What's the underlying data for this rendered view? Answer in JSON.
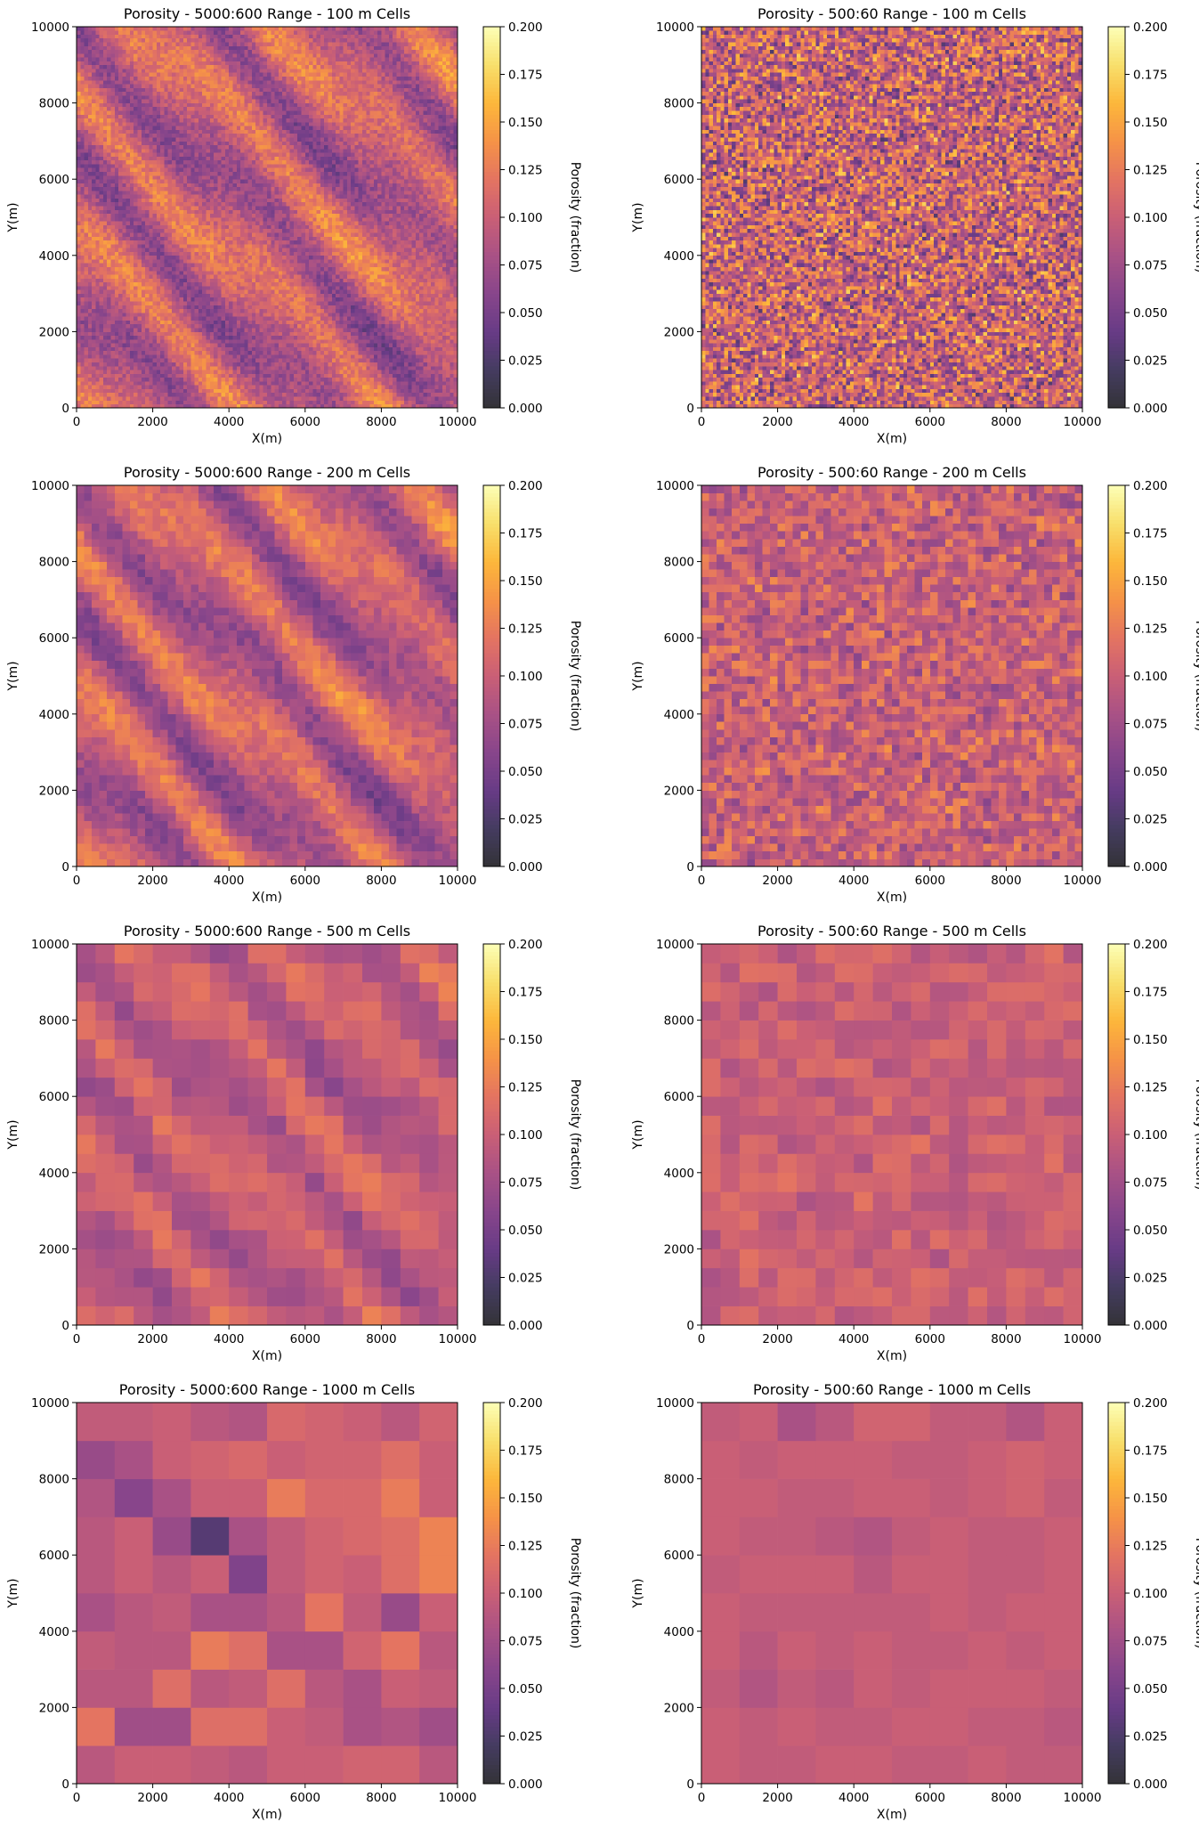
{
  "figure": {
    "colormap": "inferno",
    "colorbar_label": "Porosity (fraction)",
    "colorbar_ticks": [
      "0.000",
      "0.025",
      "0.050",
      "0.075",
      "0.100",
      "0.125",
      "0.150",
      "0.175",
      "0.200"
    ]
  },
  "chart_data": [
    {
      "type": "heatmap",
      "title": "Porosity - 5000:600 Range - 100 m Cells",
      "xlabel": "X(m)",
      "ylabel": "Y(m)",
      "xlim": [
        0,
        10000
      ],
      "ylim": [
        0,
        10000
      ],
      "xticks": [
        "0",
        "2000",
        "4000",
        "6000",
        "8000",
        "10000"
      ],
      "yticks": [
        "0",
        "2000",
        "4000",
        "6000",
        "8000",
        "10000"
      ],
      "color_range": [
        0.0,
        0.2
      ],
      "cell_size_m": 100,
      "grid": [
        100,
        100
      ],
      "pattern": "anisotropic bands oriented about 30 degrees, porosity approx 0.0-0.2"
    },
    {
      "type": "heatmap",
      "title": "Porosity - 500:60 Range - 100 m Cells",
      "xlabel": "X(m)",
      "ylabel": "Y(m)",
      "xlim": [
        0,
        10000
      ],
      "ylim": [
        0,
        10000
      ],
      "xticks": [
        "0",
        "2000",
        "4000",
        "6000",
        "8000",
        "10000"
      ],
      "yticks": [
        "0",
        "2000",
        "4000",
        "6000",
        "8000",
        "10000"
      ],
      "color_range": [
        0.0,
        0.2
      ],
      "cell_size_m": 100,
      "grid": [
        100,
        100
      ],
      "pattern": "short-range noise, porosity approx 0.03-0.18"
    },
    {
      "type": "heatmap",
      "title": "Porosity - 5000:600 Range - 200 m Cells",
      "xlabel": "X(m)",
      "ylabel": "Y(m)",
      "xlim": [
        0,
        10000
      ],
      "ylim": [
        0,
        10000
      ],
      "xticks": [
        "0",
        "2000",
        "4000",
        "6000",
        "8000",
        "10000"
      ],
      "yticks": [
        "0",
        "2000",
        "4000",
        "6000",
        "8000",
        "10000"
      ],
      "color_range": [
        0.0,
        0.2
      ],
      "cell_size_m": 200,
      "grid": [
        50,
        50
      ],
      "pattern": "anisotropic bands oriented about 30 degrees"
    },
    {
      "type": "heatmap",
      "title": "Porosity - 500:60 Range - 200 m Cells",
      "xlabel": "X(m)",
      "ylabel": "Y(m)",
      "xlim": [
        0,
        10000
      ],
      "ylim": [
        0,
        10000
      ],
      "xticks": [
        "0",
        "2000",
        "4000",
        "6000",
        "8000",
        "10000"
      ],
      "yticks": [
        "0",
        "2000",
        "4000",
        "6000",
        "8000",
        "10000"
      ],
      "color_range": [
        0.0,
        0.2
      ],
      "cell_size_m": 200,
      "grid": [
        50,
        50
      ],
      "pattern": "short-range noise, smoothed"
    },
    {
      "type": "heatmap",
      "title": "Porosity - 5000:600 Range - 500 m Cells",
      "xlabel": "X(m)",
      "ylabel": "Y(m)",
      "xlim": [
        0,
        10000
      ],
      "ylim": [
        0,
        10000
      ],
      "xticks": [
        "0",
        "2000",
        "4000",
        "6000",
        "8000",
        "10000"
      ],
      "yticks": [
        "0",
        "2000",
        "4000",
        "6000",
        "8000",
        "10000"
      ],
      "color_range": [
        0.0,
        0.2
      ],
      "cell_size_m": 500,
      "grid": [
        20,
        20
      ],
      "pattern": "coarsened anisotropic bands"
    },
    {
      "type": "heatmap",
      "title": "Porosity - 500:60 Range - 500 m Cells",
      "xlabel": "X(m)",
      "ylabel": "Y(m)",
      "xlim": [
        0,
        10000
      ],
      "ylim": [
        0,
        10000
      ],
      "xticks": [
        "0",
        "2000",
        "4000",
        "6000",
        "8000",
        "10000"
      ],
      "yticks": [
        "0",
        "2000",
        "4000",
        "6000",
        "8000",
        "10000"
      ],
      "color_range": [
        0.0,
        0.2
      ],
      "cell_size_m": 500,
      "grid": [
        20,
        20
      ],
      "pattern": "near-uniform around 0.09-0.11"
    },
    {
      "type": "heatmap",
      "title": "Porosity - 5000:600 Range - 1000 m Cells",
      "xlabel": "X(m)",
      "ylabel": "Y(m)",
      "xlim": [
        0,
        10000
      ],
      "ylim": [
        0,
        10000
      ],
      "xticks": [
        "0",
        "2000",
        "4000",
        "6000",
        "8000",
        "10000"
      ],
      "yticks": [
        "0",
        "2000",
        "4000",
        "6000",
        "8000",
        "10000"
      ],
      "color_range": [
        0.0,
        0.2
      ],
      "cell_size_m": 1000,
      "grid": [
        10,
        10
      ],
      "values": [
        [
          0.095,
          0.095,
          0.1,
          0.09,
          0.085,
          0.11,
          0.105,
          0.1,
          0.09,
          0.105
        ],
        [
          0.07,
          0.08,
          0.1,
          0.105,
          0.11,
          0.1,
          0.105,
          0.105,
          0.115,
          0.1
        ],
        [
          0.085,
          0.06,
          0.08,
          0.1,
          0.1,
          0.125,
          0.11,
          0.11,
          0.125,
          0.1
        ],
        [
          0.09,
          0.1,
          0.07,
          0.03,
          0.08,
          0.095,
          0.105,
          0.11,
          0.115,
          0.13
        ],
        [
          0.09,
          0.1,
          0.09,
          0.1,
          0.055,
          0.095,
          0.105,
          0.1,
          0.115,
          0.13
        ],
        [
          0.08,
          0.09,
          0.095,
          0.08,
          0.08,
          0.09,
          0.12,
          0.095,
          0.07,
          0.1
        ],
        [
          0.095,
          0.09,
          0.09,
          0.125,
          0.115,
          0.08,
          0.08,
          0.105,
          0.12,
          0.09
        ],
        [
          0.09,
          0.09,
          0.115,
          0.09,
          0.095,
          0.115,
          0.09,
          0.08,
          0.1,
          0.095
        ],
        [
          0.12,
          0.075,
          0.075,
          0.115,
          0.115,
          0.1,
          0.095,
          0.08,
          0.085,
          0.075
        ],
        [
          0.09,
          0.1,
          0.1,
          0.095,
          0.09,
          0.1,
          0.1,
          0.105,
          0.105,
          0.09
        ]
      ]
    },
    {
      "type": "heatmap",
      "title": "Porosity - 500:60 Range - 1000 m Cells",
      "xlabel": "X(m)",
      "ylabel": "Y(m)",
      "xlim": [
        0,
        10000
      ],
      "ylim": [
        0,
        10000
      ],
      "xticks": [
        "0",
        "2000",
        "4000",
        "6000",
        "8000",
        "10000"
      ],
      "yticks": [
        "0",
        "2000",
        "4000",
        "6000",
        "8000",
        "10000"
      ],
      "color_range": [
        0.0,
        0.2
      ],
      "cell_size_m": 1000,
      "grid": [
        10,
        10
      ],
      "values": [
        [
          0.095,
          0.1,
          0.08,
          0.09,
          0.105,
          0.105,
          0.095,
          0.095,
          0.085,
          0.1
        ],
        [
          0.1,
          0.095,
          0.1,
          0.1,
          0.1,
          0.095,
          0.095,
          0.1,
          0.105,
          0.1
        ],
        [
          0.1,
          0.1,
          0.095,
          0.095,
          0.1,
          0.1,
          0.095,
          0.1,
          0.105,
          0.095
        ],
        [
          0.1,
          0.095,
          0.095,
          0.09,
          0.085,
          0.095,
          0.1,
          0.095,
          0.095,
          0.1
        ],
        [
          0.095,
          0.1,
          0.1,
          0.1,
          0.09,
          0.1,
          0.1,
          0.095,
          0.095,
          0.1
        ],
        [
          0.1,
          0.095,
          0.095,
          0.095,
          0.095,
          0.095,
          0.1,
          0.095,
          0.1,
          0.1
        ],
        [
          0.1,
          0.09,
          0.1,
          0.095,
          0.1,
          0.095,
          0.095,
          0.1,
          0.095,
          0.1
        ],
        [
          0.095,
          0.085,
          0.095,
          0.09,
          0.1,
          0.095,
          0.1,
          0.1,
          0.1,
          0.095
        ],
        [
          0.1,
          0.095,
          0.1,
          0.095,
          0.095,
          0.1,
          0.1,
          0.095,
          0.095,
          0.09
        ],
        [
          0.1,
          0.095,
          0.095,
          0.1,
          0.1,
          0.095,
          0.095,
          0.1,
          0.095,
          0.095
        ]
      ]
    }
  ]
}
